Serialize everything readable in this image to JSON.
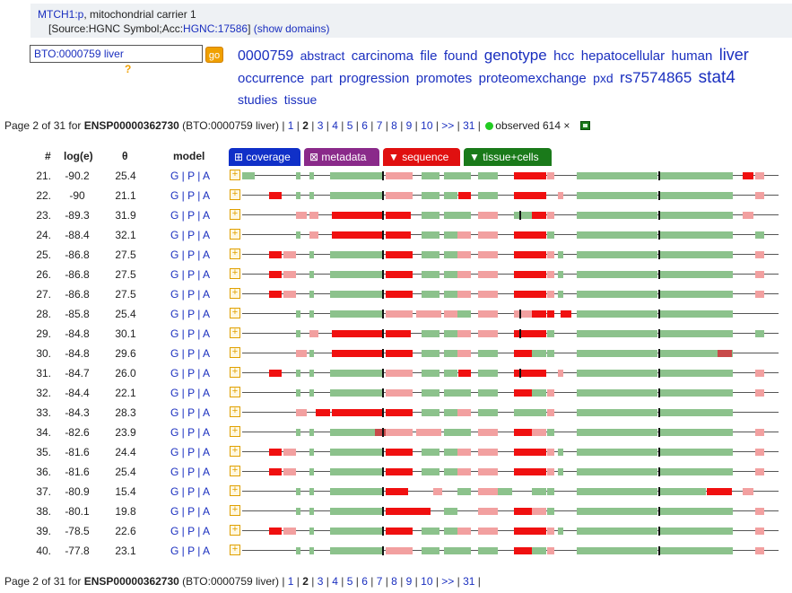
{
  "header": {
    "protein_link": "MTCH1:p",
    "protein_desc": ", mitochondrial carrier 1",
    "source_prefix": "[Source:HGNC Symbol;Acc:",
    "source_link": "HGNC:17586",
    "source_suffix": "]",
    "domains_link": "(show domains)"
  },
  "search": {
    "value": "BTO:0000759 liver",
    "go_label": "go",
    "help": "?"
  },
  "word_cloud": [
    {
      "w": "0000759",
      "s": 16
    },
    {
      "w": "abstract",
      "s": 14
    },
    {
      "w": "carcinoma",
      "s": 15
    },
    {
      "w": "file",
      "s": 15
    },
    {
      "w": "found",
      "s": 15
    },
    {
      "w": "genotype",
      "s": 17
    },
    {
      "w": "hcc",
      "s": 15
    },
    {
      "w": "hepatocellular",
      "s": 15
    },
    {
      "w": "human",
      "s": 15
    },
    {
      "w": "liver",
      "s": 18
    },
    {
      "w": "occurrence",
      "s": 15
    },
    {
      "w": "part",
      "s": 14
    },
    {
      "w": "progression",
      "s": 15
    },
    {
      "w": "promotes",
      "s": 15
    },
    {
      "w": "proteomexchange",
      "s": 15
    },
    {
      "w": "pxd",
      "s": 14
    },
    {
      "w": "rs7574865",
      "s": 17
    },
    {
      "w": "stat4",
      "s": 19
    },
    {
      "w": "studies",
      "s": 14
    },
    {
      "w": "tissue",
      "s": 14
    }
  ],
  "pager": {
    "prefix": "Page 2 of 31 for ",
    "protein_id": "ENSP00000362730",
    "context": " (BTO:0000759 liver) | ",
    "pages": [
      "1",
      "2",
      "3",
      "4",
      "5",
      "6",
      "7",
      "8",
      "9",
      "10",
      ">>",
      "31"
    ],
    "current": "2",
    "observed": "observed 614 ×"
  },
  "table": {
    "headers": {
      "num": "#",
      "loge": "log(e)",
      "theta": "θ",
      "model": "model"
    },
    "tabs": {
      "coverage": "⊞ coverage",
      "metadata": "⊠ metadata",
      "sequence": "▼ sequence",
      "tissue": "▼ tissue+cells"
    },
    "gpa": "G | P | A",
    "rows": [
      {
        "n": "21.",
        "loge": "-90.2",
        "theta": "25.4",
        "pat": 0
      },
      {
        "n": "22.",
        "loge": "-90",
        "theta": "21.1",
        "pat": 1
      },
      {
        "n": "23.",
        "loge": "-89.3",
        "theta": "31.9",
        "pat": 2
      },
      {
        "n": "24.",
        "loge": "-88.4",
        "theta": "32.1",
        "pat": 3
      },
      {
        "n": "25.",
        "loge": "-86.8",
        "theta": "27.5",
        "pat": 4
      },
      {
        "n": "26.",
        "loge": "-86.8",
        "theta": "27.5",
        "pat": 4
      },
      {
        "n": "27.",
        "loge": "-86.8",
        "theta": "27.5",
        "pat": 4
      },
      {
        "n": "28.",
        "loge": "-85.8",
        "theta": "25.4",
        "pat": 5
      },
      {
        "n": "29.",
        "loge": "-84.8",
        "theta": "30.1",
        "pat": 3
      },
      {
        "n": "30.",
        "loge": "-84.8",
        "theta": "29.6",
        "pat": 6
      },
      {
        "n": "31.",
        "loge": "-84.7",
        "theta": "26.0",
        "pat": 1
      },
      {
        "n": "32.",
        "loge": "-84.4",
        "theta": "22.1",
        "pat": 7
      },
      {
        "n": "33.",
        "loge": "-84.3",
        "theta": "28.3",
        "pat": 8
      },
      {
        "n": "34.",
        "loge": "-82.6",
        "theta": "23.9",
        "pat": 9
      },
      {
        "n": "35.",
        "loge": "-81.6",
        "theta": "24.4",
        "pat": 4
      },
      {
        "n": "36.",
        "loge": "-81.6",
        "theta": "25.4",
        "pat": 4
      },
      {
        "n": "37.",
        "loge": "-80.9",
        "theta": "15.4",
        "pat": 10
      },
      {
        "n": "38.",
        "loge": "-80.1",
        "theta": "19.8",
        "pat": 11
      },
      {
        "n": "39.",
        "loge": "-78.5",
        "theta": "22.6",
        "pat": 4
      },
      {
        "n": "40.",
        "loge": "-77.8",
        "theta": "23.1",
        "pat": 7
      }
    ]
  },
  "colors": {
    "link": "#1a2fbf",
    "observed": "#f01010",
    "tissue": "#8cc28c",
    "light": "#f2a0a0",
    "accent": "#f0a000"
  }
}
